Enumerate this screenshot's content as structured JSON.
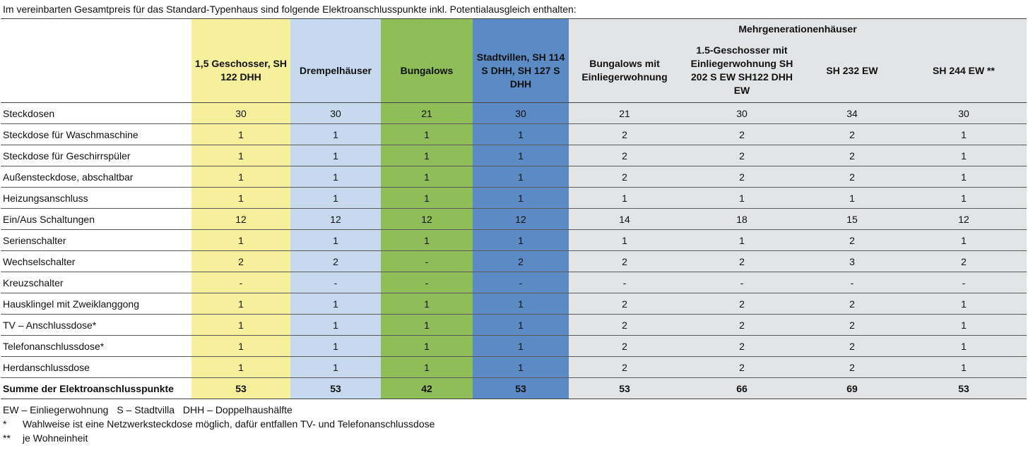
{
  "title": "Im vereinbarten Gesamtpreis für das Standard-Typenhaus sind folgende Elektroanschlusspunkte inkl. Potentialausgleich enthalten:",
  "group_header": "Mehrgenerationenhäuser",
  "columns": [
    "1,5 Geschosser, SH 122 DHH",
    "Drempelhäuser",
    "Bungalows",
    "Stadtvillen, SH 114 S DHH, SH 127 S DHH",
    "Bungalows mit Einliegerwohnung",
    "1.5-Geschosser mit Einliegerwohnung SH 202 S EW SH122 DHH EW",
    "SH 232 EW",
    "SH 244 EW **"
  ],
  "rows": [
    {
      "label": "Steckdosen",
      "values": [
        "30",
        "30",
        "21",
        "30",
        "21",
        "30",
        "34",
        "30"
      ]
    },
    {
      "label": "Steckdose für Waschmaschine",
      "values": [
        "1",
        "1",
        "1",
        "1",
        "2",
        "2",
        "2",
        "1"
      ]
    },
    {
      "label": "Steckdose für Geschirrspüler",
      "values": [
        "1",
        "1",
        "1",
        "1",
        "2",
        "2",
        "2",
        "1"
      ]
    },
    {
      "label": "Außensteckdose, abschaltbar",
      "values": [
        "1",
        "1",
        "1",
        "1",
        "2",
        "2",
        "2",
        "1"
      ]
    },
    {
      "label": "Heizungsanschluss",
      "values": [
        "1",
        "1",
        "1",
        "1",
        "1",
        "1",
        "1",
        "1"
      ]
    },
    {
      "label": "Ein/Aus Schaltungen",
      "values": [
        "12",
        "12",
        "12",
        "12",
        "14",
        "18",
        "15",
        "12"
      ]
    },
    {
      "label": "Serienschalter",
      "values": [
        "1",
        "1",
        "1",
        "1",
        "1",
        "1",
        "2",
        "1"
      ]
    },
    {
      "label": "Wechselschalter",
      "values": [
        "2",
        "2",
        "-",
        "2",
        "2",
        "2",
        "3",
        "2"
      ]
    },
    {
      "label": "Kreuzschalter",
      "values": [
        "-",
        "-",
        "-",
        "-",
        "-",
        "-",
        "-",
        "-"
      ]
    },
    {
      "label": "Hausklingel mit Zweiklanggong",
      "values": [
        "1",
        "1",
        "1",
        "1",
        "2",
        "2",
        "2",
        "1"
      ]
    },
    {
      "label": "TV – Anschlussdose*",
      "values": [
        "1",
        "1",
        "1",
        "1",
        "2",
        "2",
        "2",
        "1"
      ]
    },
    {
      "label": "Telefonanschlussdose*",
      "values": [
        "1",
        "1",
        "1",
        "1",
        "2",
        "2",
        "2",
        "1"
      ]
    },
    {
      "label": "Herdanschlussdose",
      "values": [
        "1",
        "1",
        "1",
        "1",
        "2",
        "2",
        "2",
        "1"
      ]
    }
  ],
  "total": {
    "label": "Summe der Elektroanschlusspunkte",
    "values": [
      "53",
      "53",
      "42",
      "53",
      "53",
      "66",
      "69",
      "53"
    ]
  },
  "notes": {
    "legend": [
      "EW – Einliegerwohnung",
      "S – Stadtvilla",
      "DHH – Doppelhaushälfte"
    ],
    "footnote_star_mark": "*",
    "footnote_star_text": "Wahlweise ist eine Netzwerksteckdose möglich, dafür entfallen TV- und Telefonanschlussdose",
    "footnote_double_mark": "**",
    "footnote_double_text": "je Wohneinheit"
  },
  "colors": {
    "col1": "#f6ef9c",
    "col2": "#c7d9ee",
    "col3": "#8fbd58",
    "col4": "#5b8ac5",
    "multi_generation": "#e3e4e6"
  }
}
